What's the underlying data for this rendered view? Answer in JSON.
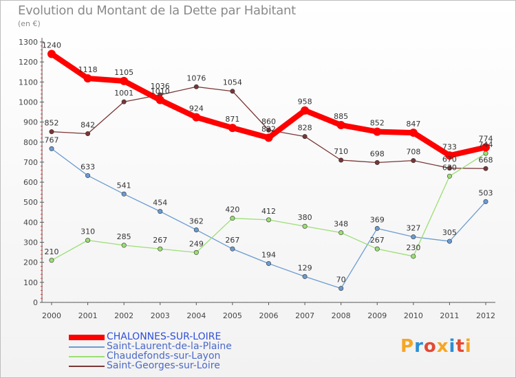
{
  "chart_data": {
    "type": "line",
    "title": "Evolution du Montant de la Dette par Habitant",
    "subtitle": "(en €)",
    "xlabel": "",
    "ylabel": "",
    "x": [
      "2000",
      "2001",
      "2002",
      "2003",
      "2004",
      "2005",
      "2006",
      "2007",
      "2008",
      "2009",
      "2010",
      "2011",
      "2012"
    ],
    "ylim": [
      0,
      1300
    ],
    "yticks": [
      0,
      100,
      200,
      300,
      400,
      500,
      600,
      700,
      800,
      900,
      1000,
      1100,
      1200,
      1300
    ],
    "grid": false,
    "legend_position": "bottom",
    "series": [
      {
        "name": "CHALONNES-SUR-LOIRE",
        "color": "#ff0000",
        "values": [
          1240,
          1118,
          1105,
          1010,
          924,
          871,
          822,
          958,
          885,
          852,
          847,
          733,
          774
        ],
        "labels": [
          "1240",
          "1118",
          "1105",
          "1010",
          "924",
          "871",
          "822",
          "958",
          "885",
          "852",
          "847",
          "733",
          "774"
        ]
      },
      {
        "name": "Saint-Laurent-de-la-Plaine",
        "color": "#6b9bd1",
        "values": [
          767,
          633,
          541,
          454,
          362,
          267,
          194,
          129,
          70,
          369,
          327,
          305,
          503
        ],
        "labels": [
          "767",
          "633",
          "541",
          "454",
          "362",
          "267",
          "194",
          "129",
          "70",
          "369",
          "327",
          "305",
          "503"
        ]
      },
      {
        "name": "Chaudefonds-sur-Layon",
        "color": "#9bde74",
        "values": [
          210,
          310,
          285,
          267,
          249,
          420,
          412,
          380,
          348,
          267,
          230,
          630,
          744
        ],
        "labels": [
          "210",
          "310",
          "285",
          "267",
          "249",
          "420",
          "412",
          "380",
          "348",
          "267",
          "230",
          "630",
          "744"
        ]
      },
      {
        "name": "Saint-Georges-sur-Loire",
        "color": "#7a3535",
        "values": [
          852,
          842,
          1001,
          1036,
          1076,
          1054,
          860,
          828,
          710,
          698,
          708,
          670,
          668
        ],
        "labels": [
          "852",
          "842",
          "1001",
          "1036",
          "1076",
          "1054",
          "860",
          "828",
          "710",
          "698",
          "708",
          "670",
          "668"
        ]
      }
    ]
  },
  "logo": {
    "text": "Proxiti",
    "letters": [
      "P",
      "r",
      "o",
      "x",
      "i",
      "t",
      "i"
    ],
    "colors": [
      "#f6a623",
      "#2a8fd6",
      "#e24a33",
      "#f6a623",
      "#2a8fd6",
      "#e24a33",
      "#f6a623"
    ]
  }
}
